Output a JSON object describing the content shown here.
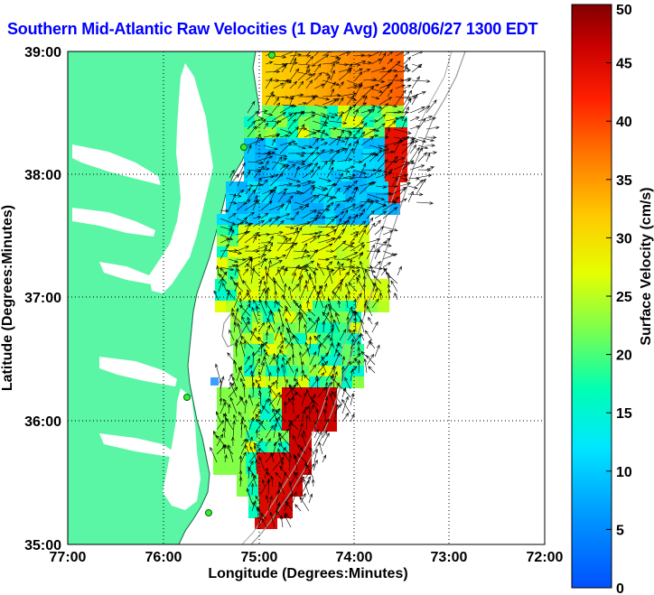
{
  "title": "Southern Mid-Atlantic Raw Velocities (1 Day Avg) 2008/06/27 1300 EDT",
  "x_axis": {
    "label": "Longitude (Degrees:Minutes)",
    "ticks": [
      "77:00",
      "76:00",
      "75:00",
      "74:00",
      "73:00",
      "72:00"
    ]
  },
  "y_axis": {
    "label": "Latitude (Degrees:Minutes)",
    "ticks": [
      "39:00",
      "38:00",
      "37:00",
      "36:00",
      "35:00"
    ]
  },
  "colorbar": {
    "label": "Surface Velocity (cm/s)",
    "ticks": [
      "50",
      "45",
      "40",
      "35",
      "30",
      "25",
      "20",
      "15",
      "10",
      "5",
      "0"
    ],
    "range": [
      0,
      50
    ],
    "colors": [
      "#0000c8",
      "#0064ff",
      "#00c8ff",
      "#00ffc8",
      "#64ff64",
      "#ffff00",
      "#ffc800",
      "#ff6400",
      "#ff0000",
      "#c80000",
      "#800000"
    ]
  },
  "map": {
    "lon_range": [
      -77,
      -72
    ],
    "lat_range": [
      35,
      39
    ],
    "land_color": "#5af5a5",
    "stations": [
      "station-1",
      "station-2",
      "station-3",
      "station-4"
    ]
  }
}
